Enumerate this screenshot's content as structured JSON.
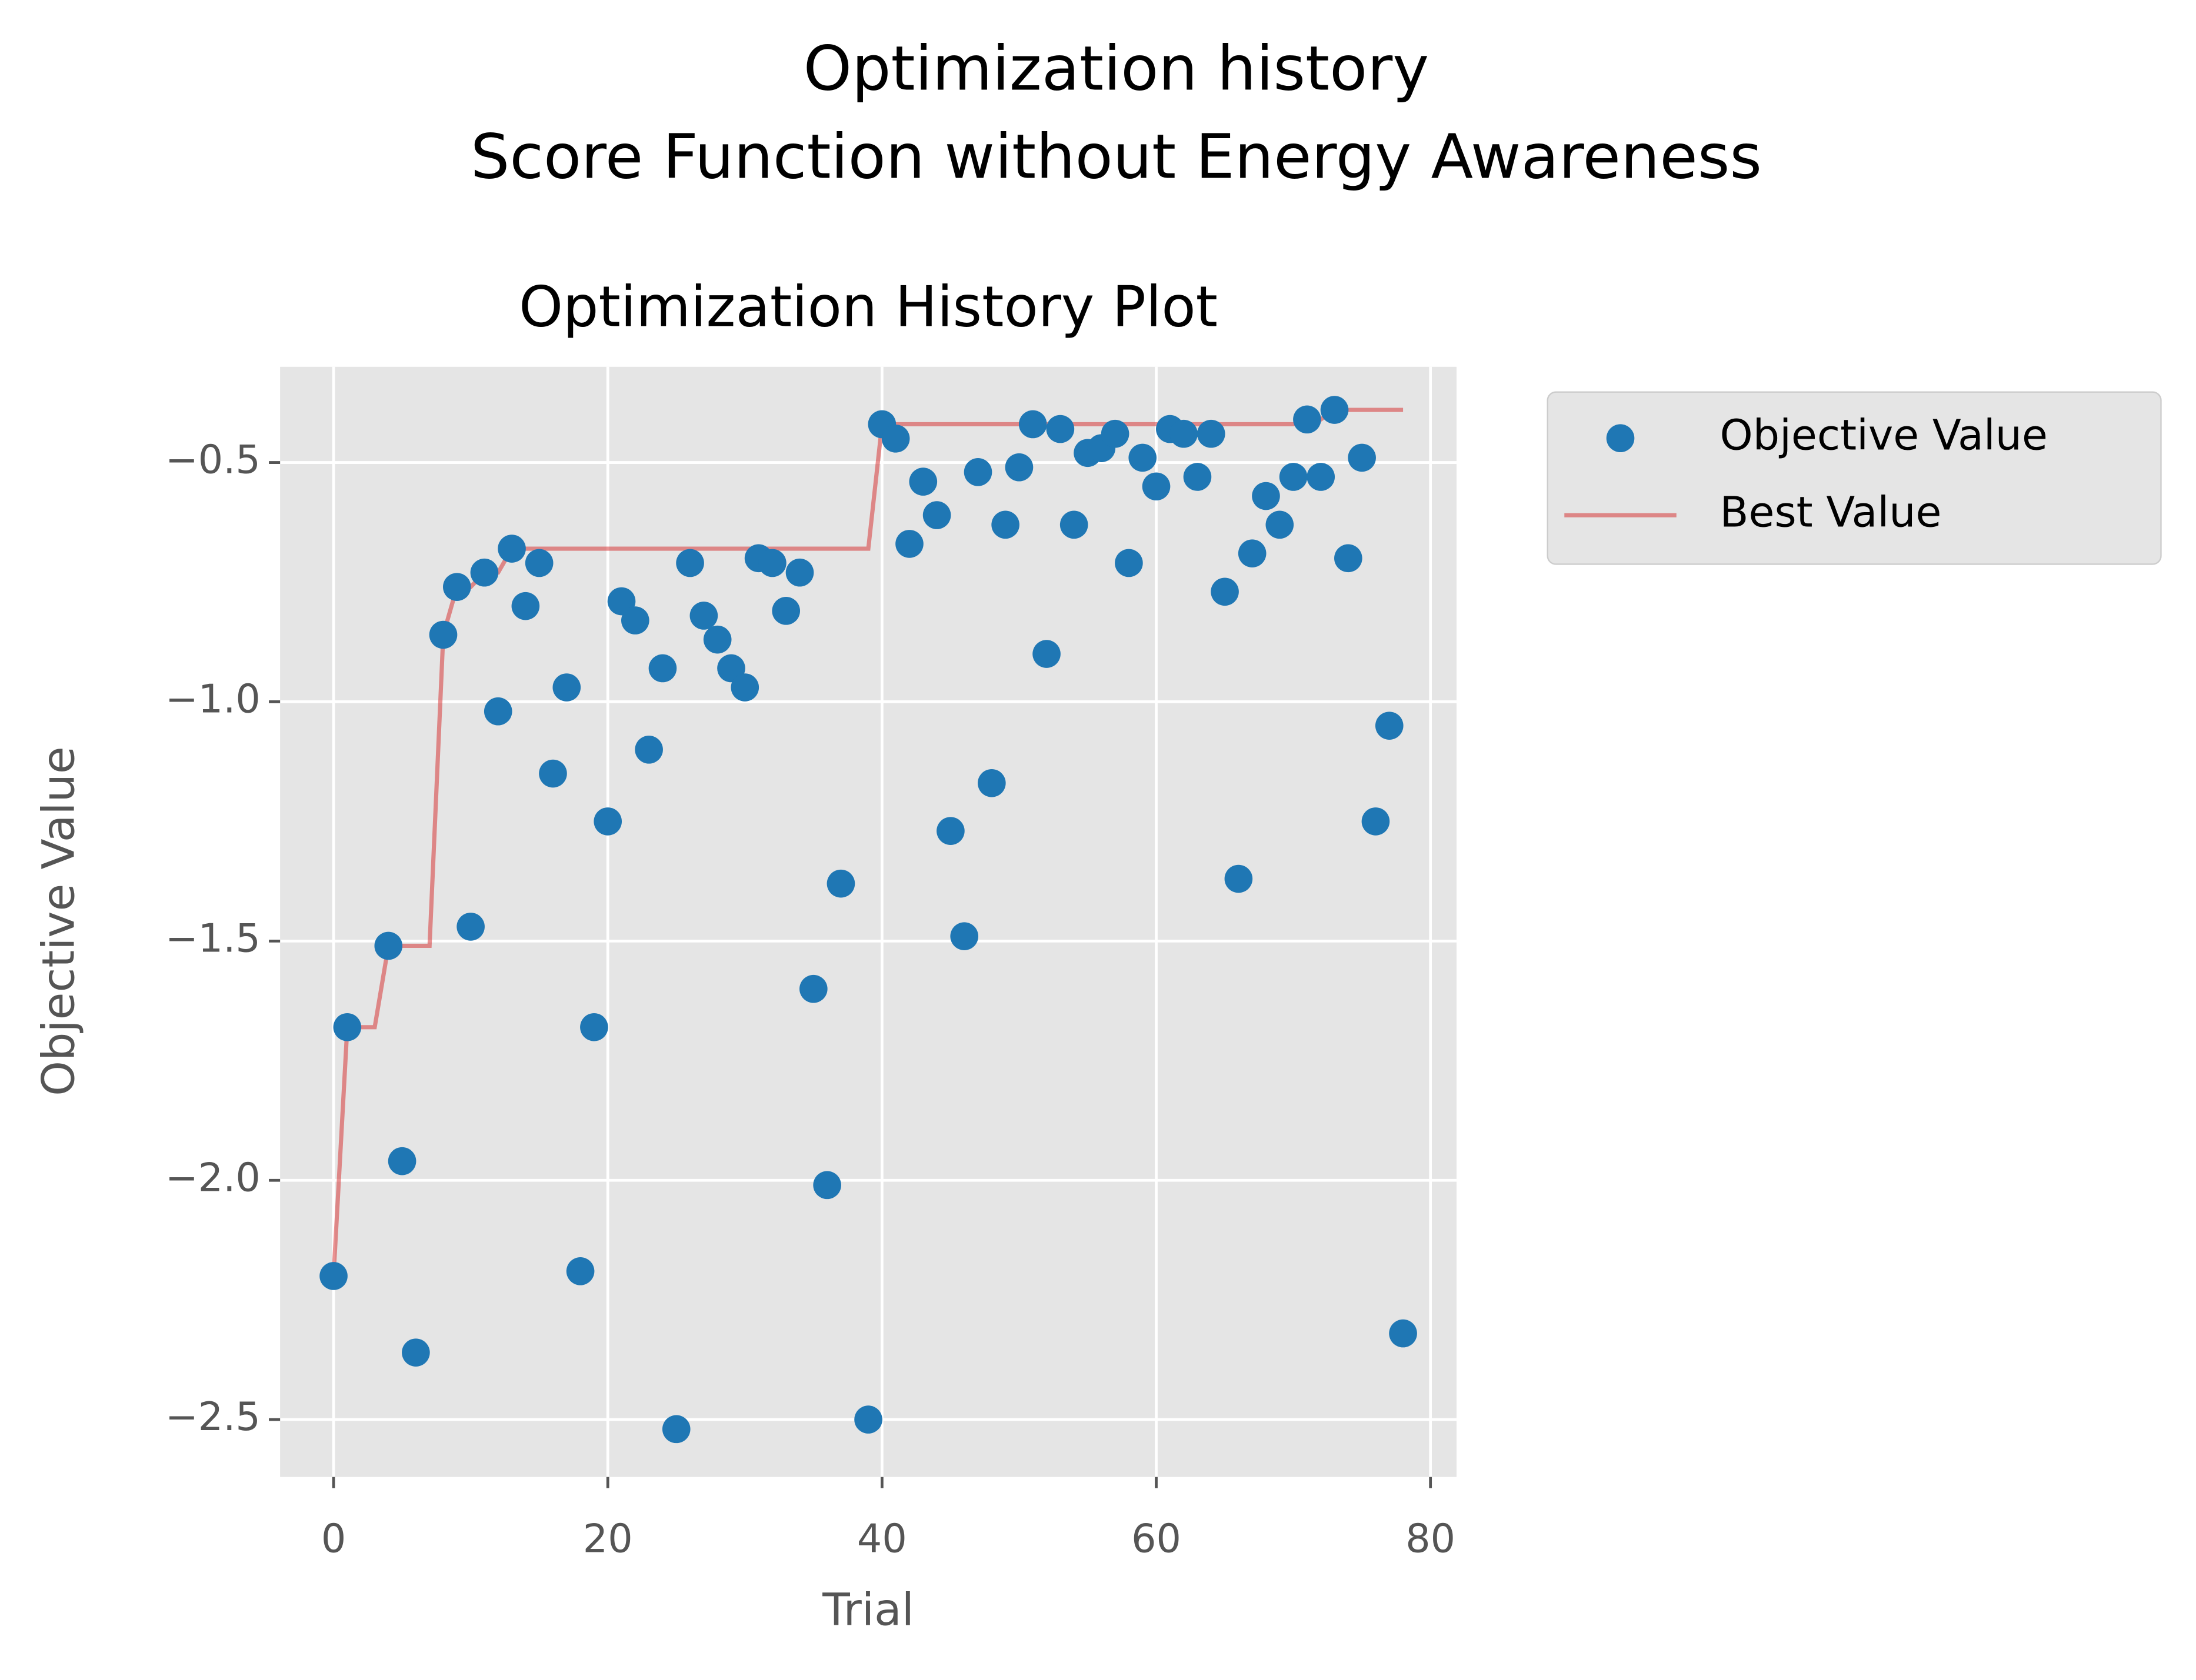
{
  "chart_data": {
    "type": "scatter",
    "suptitle": [
      "Optimization history",
      "Score Function without Energy Awareness"
    ],
    "title": "Optimization History Plot",
    "xlabel": "Trial",
    "ylabel": "Objective Value",
    "xlim": [
      -3.9,
      81.9
    ],
    "ylim": [
      -2.62,
      -0.3
    ],
    "xticks": [
      0,
      20,
      40,
      60,
      80
    ],
    "yticks": [
      {
        "value": -0.5,
        "label": "−0.5"
      },
      {
        "value": -1.0,
        "label": "−1.0"
      },
      {
        "value": -1.5,
        "label": "−1.5"
      },
      {
        "value": -2.0,
        "label": "−2.0"
      },
      {
        "value": -2.5,
        "label": "−2.5"
      }
    ],
    "grid": true,
    "legend": "outside-right",
    "series": [
      {
        "name": "Objective Value",
        "type": "scatter",
        "color": "#1f77b4",
        "x": [
          0,
          1,
          4,
          5,
          6,
          8,
          9,
          10,
          11,
          12,
          13,
          14,
          15,
          16,
          17,
          18,
          19,
          20,
          21,
          22,
          23,
          24,
          25,
          26,
          27,
          28,
          29,
          30,
          31,
          32,
          33,
          34,
          35,
          36,
          37,
          39,
          40,
          41,
          42,
          43,
          44,
          45,
          46,
          47,
          48,
          49,
          50,
          51,
          52,
          53,
          54,
          55,
          56,
          57,
          58,
          59,
          60,
          61,
          62,
          63,
          64,
          65,
          66,
          67,
          68,
          69,
          70,
          71,
          72,
          73,
          74,
          75,
          76,
          77,
          78
        ],
        "values": [
          -2.2,
          -1.68,
          -1.51,
          -1.96,
          -2.36,
          -0.86,
          -0.76,
          -1.47,
          -0.73,
          -1.02,
          -0.68,
          -0.8,
          -0.71,
          -1.15,
          -0.97,
          -2.19,
          -1.68,
          -1.25,
          -0.79,
          -0.83,
          -1.1,
          -0.93,
          -2.52,
          -0.71,
          -0.82,
          -0.87,
          -0.93,
          -0.97,
          -0.7,
          -0.71,
          -0.81,
          -0.73,
          -1.6,
          -2.01,
          -1.38,
          -2.5,
          -0.42,
          -0.45,
          -0.67,
          -0.54,
          -0.61,
          -1.27,
          -1.49,
          -0.52,
          -1.17,
          -0.63,
          -0.51,
          -0.42,
          -0.9,
          -0.43,
          -0.63,
          -0.48,
          -0.47,
          -0.44,
          -0.71,
          -0.49,
          -0.55,
          -0.43,
          -0.44,
          -0.53,
          -0.44,
          -0.77,
          -1.37,
          -0.69,
          -0.57,
          -0.63,
          -0.53,
          -0.41,
          -0.53,
          -0.39,
          -0.7,
          -0.49,
          -1.25,
          -1.05,
          -2.32
        ]
      },
      {
        "name": "Best Value",
        "type": "line",
        "color": "#d62728",
        "x": [
          0,
          1,
          2,
          3,
          4,
          5,
          6,
          7,
          8,
          9,
          10,
          11,
          12,
          13,
          14,
          15,
          16,
          17,
          18,
          19,
          20,
          21,
          22,
          23,
          24,
          25,
          26,
          27,
          28,
          29,
          30,
          31,
          32,
          33,
          34,
          35,
          36,
          37,
          38,
          39,
          40,
          41,
          42,
          43,
          44,
          45,
          46,
          47,
          48,
          49,
          50,
          51,
          52,
          53,
          54,
          55,
          56,
          57,
          58,
          59,
          60,
          61,
          62,
          63,
          64,
          65,
          66,
          67,
          68,
          69,
          70,
          71,
          72,
          73,
          74,
          75,
          76,
          77,
          78
        ],
        "values": [
          -2.2,
          -1.68,
          -1.68,
          -1.68,
          -1.51,
          -1.51,
          -1.51,
          -1.51,
          -0.86,
          -0.76,
          -0.76,
          -0.73,
          -0.73,
          -0.68,
          -0.68,
          -0.68,
          -0.68,
          -0.68,
          -0.68,
          -0.68,
          -0.68,
          -0.68,
          -0.68,
          -0.68,
          -0.68,
          -0.68,
          -0.68,
          -0.68,
          -0.68,
          -0.68,
          -0.68,
          -0.68,
          -0.68,
          -0.68,
          -0.68,
          -0.68,
          -0.68,
          -0.68,
          -0.68,
          -0.68,
          -0.42,
          -0.42,
          -0.42,
          -0.42,
          -0.42,
          -0.42,
          -0.42,
          -0.42,
          -0.42,
          -0.42,
          -0.42,
          -0.42,
          -0.42,
          -0.42,
          -0.42,
          -0.42,
          -0.42,
          -0.42,
          -0.42,
          -0.42,
          -0.42,
          -0.42,
          -0.42,
          -0.42,
          -0.42,
          -0.42,
          -0.42,
          -0.42,
          -0.42,
          -0.42,
          -0.42,
          -0.41,
          -0.41,
          -0.39,
          -0.39,
          -0.39,
          -0.39,
          -0.39,
          -0.39
        ]
      }
    ]
  }
}
